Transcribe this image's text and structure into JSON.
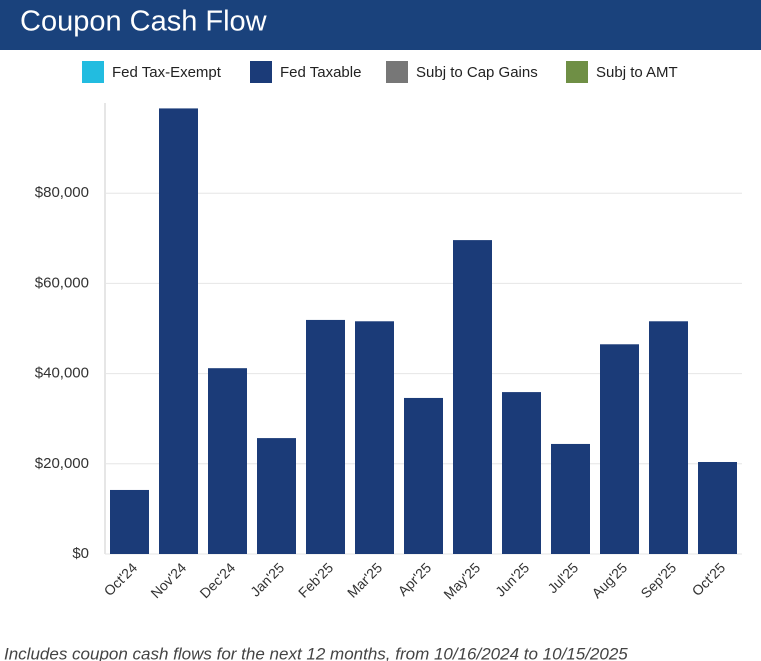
{
  "chart_data": {
    "type": "bar",
    "title": "Coupon Cash Flow",
    "note": "Includes coupon cash flows for the next 12 months, from 10/16/2024 to 10/15/2025",
    "categories": [
      "Oct'24",
      "Nov'24",
      "Dec'24",
      "Jan'25",
      "Feb'25",
      "Mar'25",
      "Apr'25",
      "May'25",
      "Jun'25",
      "Jul'25",
      "Aug'25",
      "Sep'25",
      "Oct'25"
    ],
    "stacked": true,
    "series": [
      {
        "name": "Fed Tax-Exempt",
        "color": "#22bce0",
        "values": [
          0,
          0,
          0,
          0,
          0,
          0,
          0,
          0,
          0,
          0,
          0,
          0,
          0
        ]
      },
      {
        "name": "Fed Taxable",
        "color": "#1b3b78",
        "values": [
          14200,
          98800,
          41200,
          25700,
          51900,
          51600,
          34600,
          69600,
          35900,
          24400,
          46500,
          51600,
          20400
        ]
      },
      {
        "name": "Subj to Cap Gains",
        "color": "#777777",
        "values": [
          0,
          0,
          0,
          0,
          0,
          0,
          0,
          0,
          0,
          0,
          0,
          0,
          0
        ]
      },
      {
        "name": "Subj to AMT",
        "color": "#6f8f45",
        "values": [
          0,
          0,
          0,
          0,
          0,
          0,
          0,
          0,
          0,
          0,
          0,
          0,
          0
        ]
      }
    ],
    "ylim": [
      0,
      100000
    ],
    "yticks": [
      {
        "value": 0,
        "label": "$0"
      },
      {
        "value": 20000,
        "label": "$20,000"
      },
      {
        "value": 40000,
        "label": "$40,000"
      },
      {
        "value": 60000,
        "label": "$60,000"
      },
      {
        "value": 80000,
        "label": "$80,000"
      }
    ],
    "grid": true,
    "legend": "top"
  }
}
